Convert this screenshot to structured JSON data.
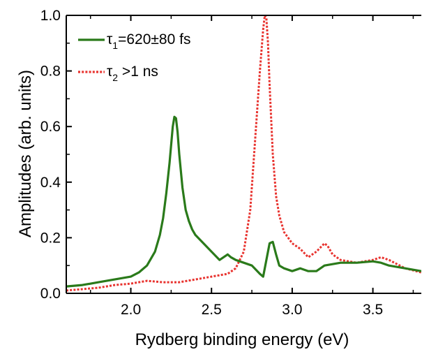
{
  "chart_data": {
    "type": "line",
    "xlabel": "Rydberg binding energy (eV)",
    "ylabel": "Amplitudes (arb. units)",
    "xlim": [
      1.6,
      3.8
    ],
    "ylim": [
      0,
      1.0
    ],
    "xticks": [
      "2.0",
      "2.5",
      "3.0",
      "3.5"
    ],
    "yticks": [
      "0.0",
      "0.2",
      "0.4",
      "0.6",
      "0.8",
      "1.0"
    ],
    "legend_position": "top-left",
    "series": [
      {
        "name": "τ1=620±80 fs",
        "legend_symbol": "τ",
        "legend_subscript": "1",
        "legend_rest": "=620±80 fs",
        "color": "#2a7a1a",
        "style": "solid",
        "x": [
          1.6,
          1.7,
          1.8,
          1.9,
          2.0,
          2.05,
          2.1,
          2.15,
          2.18,
          2.2,
          2.22,
          2.24,
          2.26,
          2.27,
          2.28,
          2.29,
          2.3,
          2.32,
          2.34,
          2.36,
          2.38,
          2.4,
          2.45,
          2.5,
          2.55,
          2.6,
          2.62,
          2.65,
          2.7,
          2.75,
          2.8,
          2.82,
          2.84,
          2.86,
          2.88,
          2.9,
          2.92,
          2.95,
          3.0,
          3.05,
          3.1,
          3.15,
          3.2,
          3.3,
          3.4,
          3.5,
          3.55,
          3.6,
          3.7,
          3.8
        ],
        "y": [
          0.025,
          0.03,
          0.04,
          0.05,
          0.06,
          0.075,
          0.1,
          0.15,
          0.21,
          0.27,
          0.36,
          0.47,
          0.6,
          0.635,
          0.63,
          0.58,
          0.5,
          0.38,
          0.3,
          0.26,
          0.23,
          0.21,
          0.18,
          0.15,
          0.12,
          0.14,
          0.13,
          0.12,
          0.11,
          0.1,
          0.07,
          0.06,
          0.12,
          0.18,
          0.185,
          0.14,
          0.1,
          0.09,
          0.08,
          0.09,
          0.08,
          0.08,
          0.1,
          0.11,
          0.11,
          0.115,
          0.11,
          0.1,
          0.09,
          0.08
        ]
      },
      {
        "name": "τ2 >1 ns",
        "legend_symbol": "τ",
        "legend_subscript": "2",
        "legend_rest": " >1 ns",
        "color": "#e8332f",
        "style": "dotted",
        "x": [
          1.6,
          1.7,
          1.8,
          1.9,
          2.0,
          2.1,
          2.2,
          2.3,
          2.4,
          2.5,
          2.6,
          2.65,
          2.7,
          2.74,
          2.77,
          2.8,
          2.82,
          2.83,
          2.84,
          2.85,
          2.86,
          2.88,
          2.9,
          2.92,
          2.95,
          3.0,
          3.05,
          3.1,
          3.15,
          3.2,
          3.22,
          3.25,
          3.3,
          3.4,
          3.5,
          3.55,
          3.6,
          3.7,
          3.8
        ],
        "y": [
          0.01,
          0.015,
          0.02,
          0.03,
          0.035,
          0.045,
          0.04,
          0.04,
          0.05,
          0.06,
          0.07,
          0.09,
          0.15,
          0.3,
          0.55,
          0.8,
          0.95,
          1.0,
          0.99,
          0.9,
          0.75,
          0.5,
          0.35,
          0.28,
          0.22,
          0.18,
          0.16,
          0.13,
          0.15,
          0.18,
          0.17,
          0.14,
          0.12,
          0.11,
          0.12,
          0.13,
          0.12,
          0.09,
          0.075
        ]
      }
    ]
  }
}
